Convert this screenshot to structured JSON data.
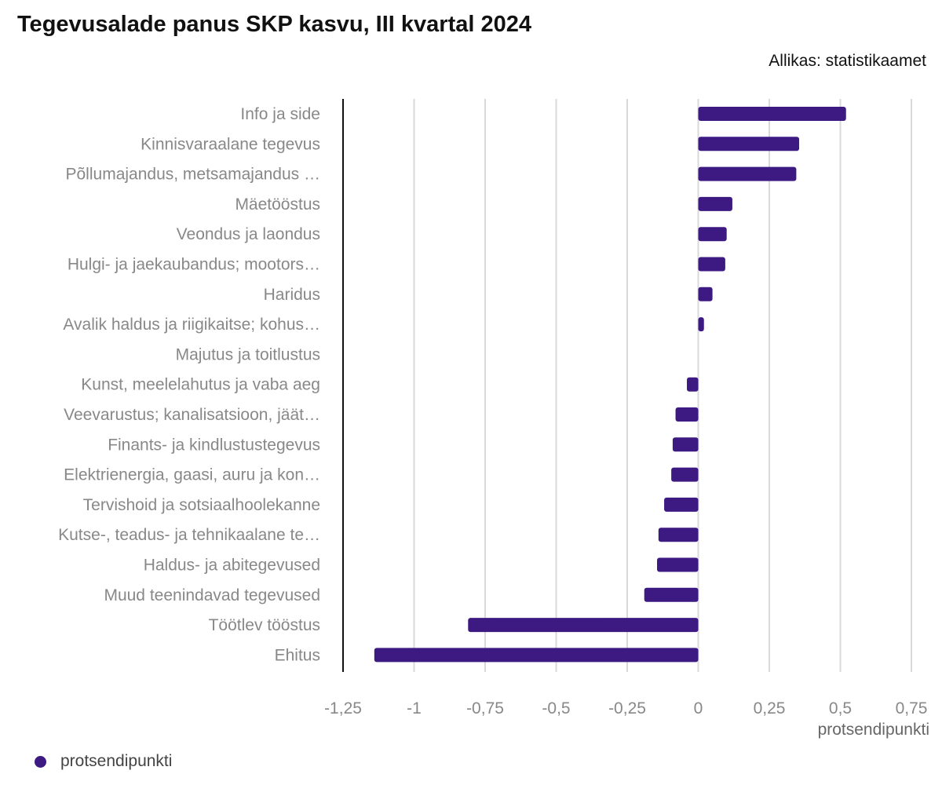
{
  "header": {
    "title": "Tegevusalade panus SKP kasvu, III kvartal 2024",
    "source": "Allikas: statistikaamet"
  },
  "colors": {
    "bar": "#3d1a82",
    "grid": "#d9d9d9",
    "axis": "#111111",
    "label": "#888888"
  },
  "legend": {
    "items": [
      {
        "label": "protsendipunkti",
        "color": "#3d1a82"
      }
    ],
    "placement": "bottom-left"
  },
  "chart_data": {
    "type": "bar",
    "orientation": "horizontal",
    "title": "Tegevusalade panus SKP kasvu, III kvartal 2024",
    "xlabel": "protsendipunkti",
    "ylabel": "",
    "xlim": [
      -1.25,
      0.75
    ],
    "xticks": [
      -1.25,
      -1,
      -0.75,
      -0.5,
      -0.25,
      0,
      0.25,
      0.5,
      0.75
    ],
    "xtick_labels": [
      "-1,25",
      "-1",
      "-0,75",
      "-0,5",
      "-0,25",
      "0",
      "0,25",
      "0,5",
      "0,75"
    ],
    "grid": true,
    "categories": [
      "Info ja side",
      "Kinnisvaraalane tegevus",
      "Põllumajandus, metsamajandus …",
      "Mäetööstus",
      "Veondus ja laondus",
      "Hulgi- ja jaekaubandus; mootors…",
      "Haridus",
      "Avalik haldus ja riigikaitse; kohus…",
      "Majutus ja toitlustus",
      "Kunst, meelelahutus ja vaba aeg",
      "Veevarustus; kanalisatsioon, jäät…",
      "Finants- ja kindlustustegevus",
      "Elektrienergia, gaasi, auru ja kon…",
      "Tervishoid ja sotsiaalhoolekanne",
      "Kutse-, teadus- ja tehnikaalane te…",
      "Haldus- ja abitegevused",
      "Muud teenindavad tegevused",
      "Töötlev tööstus",
      "Ehitus"
    ],
    "series": [
      {
        "name": "protsendipunkti",
        "values": [
          0.52,
          0.355,
          0.345,
          0.12,
          0.1,
          0.095,
          0.05,
          0.02,
          0,
          -0.04,
          -0.08,
          -0.09,
          -0.095,
          -0.12,
          -0.14,
          -0.145,
          -0.19,
          -0.81,
          -1.14
        ]
      }
    ]
  }
}
